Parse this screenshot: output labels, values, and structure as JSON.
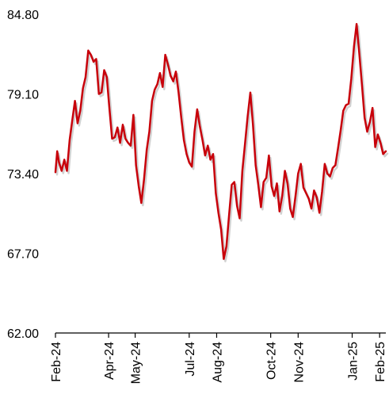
{
  "chart_data": {
    "type": "line",
    "title": "",
    "xlabel": "",
    "ylabel": "",
    "ylim": [
      62.0,
      84.8
    ],
    "y_ticks": [
      "62.00",
      "67.70",
      "73.40",
      "79.10",
      "84.80"
    ],
    "x_tick_labels": [
      "Feb-24",
      "Apr-24",
      "May-24",
      "Jul-24",
      "Aug-24",
      "Oct-24",
      "Nov-24",
      "Jan-25",
      "Feb-25"
    ],
    "x_tick_dates": [
      "2024-02-01",
      "2024-04-01",
      "2024-05-01",
      "2024-07-01",
      "2024-08-01",
      "2024-10-01",
      "2024-11-01",
      "2025-01-01",
      "2025-02-01"
    ],
    "x_range": [
      "2024-02-01",
      "2025-02-08"
    ],
    "grid": false,
    "legend": "none",
    "colors": {
      "line": "#c8000a",
      "shadow": "#9a9a9a",
      "axis": "#000000"
    },
    "series": [
      {
        "x": [
          "2024-02-01",
          "2024-02-03",
          "2024-02-05",
          "2024-02-08",
          "2024-02-11",
          "2024-02-14",
          "2024-02-17",
          "2024-02-20",
          "2024-02-23",
          "2024-02-26",
          "2024-02-29",
          "2024-03-03",
          "2024-03-06",
          "2024-03-09",
          "2024-03-12",
          "2024-03-15",
          "2024-03-18",
          "2024-03-21",
          "2024-03-24",
          "2024-03-27",
          "2024-03-30",
          "2024-04-02",
          "2024-04-05",
          "2024-04-08",
          "2024-04-11",
          "2024-04-14",
          "2024-04-17",
          "2024-04-20",
          "2024-04-23",
          "2024-04-26",
          "2024-04-29",
          "2024-05-02",
          "2024-05-05",
          "2024-05-08",
          "2024-05-11",
          "2024-05-14",
          "2024-05-17",
          "2024-05-20",
          "2024-05-23",
          "2024-05-26",
          "2024-05-29",
          "2024-06-01",
          "2024-06-04",
          "2024-06-07",
          "2024-06-10",
          "2024-06-13",
          "2024-06-16",
          "2024-06-19",
          "2024-06-22",
          "2024-06-25",
          "2024-06-28",
          "2024-07-01",
          "2024-07-04",
          "2024-07-07",
          "2024-07-10",
          "2024-07-13",
          "2024-07-16",
          "2024-07-19",
          "2024-07-22",
          "2024-07-25",
          "2024-07-28",
          "2024-07-31",
          "2024-08-03",
          "2024-08-06",
          "2024-08-09",
          "2024-08-12",
          "2024-08-15",
          "2024-08-18",
          "2024-08-21",
          "2024-08-24",
          "2024-08-27",
          "2024-08-30",
          "2024-09-02",
          "2024-09-05",
          "2024-09-08",
          "2024-09-11",
          "2024-09-14",
          "2024-09-17",
          "2024-09-20",
          "2024-09-23",
          "2024-09-26",
          "2024-09-29",
          "2024-10-02",
          "2024-10-05",
          "2024-10-08",
          "2024-10-11",
          "2024-10-14",
          "2024-10-17",
          "2024-10-20",
          "2024-10-23",
          "2024-10-26",
          "2024-10-29",
          "2024-11-01",
          "2024-11-04",
          "2024-11-07",
          "2024-11-10",
          "2024-11-13",
          "2024-11-16",
          "2024-11-19",
          "2024-11-22",
          "2024-11-25",
          "2024-11-28",
          "2024-12-01",
          "2024-12-04",
          "2024-12-07",
          "2024-12-10",
          "2024-12-13",
          "2024-12-16",
          "2024-12-19",
          "2024-12-22",
          "2024-12-25",
          "2024-12-28",
          "2024-12-31",
          "2025-01-03",
          "2025-01-06",
          "2025-01-09",
          "2025-01-12",
          "2025-01-15",
          "2025-01-18",
          "2025-01-21",
          "2025-01-24",
          "2025-01-27",
          "2025-01-30",
          "2025-02-02",
          "2025-02-05",
          "2025-02-08"
        ],
        "values": [
          73.5,
          75.0,
          74.2,
          73.6,
          74.4,
          73.6,
          75.8,
          77.2,
          78.6,
          77.0,
          77.9,
          79.5,
          80.3,
          82.2,
          81.9,
          81.4,
          81.6,
          79.1,
          79.2,
          80.8,
          80.3,
          78.0,
          75.9,
          76.0,
          76.7,
          75.6,
          76.9,
          75.9,
          75.6,
          75.4,
          77.6,
          74.0,
          72.5,
          71.3,
          73.0,
          75.1,
          76.4,
          78.6,
          79.4,
          79.8,
          80.6,
          79.6,
          81.9,
          81.2,
          80.4,
          80.0,
          80.7,
          79.2,
          77.4,
          75.8,
          74.8,
          74.2,
          73.9,
          76.4,
          78.0,
          76.8,
          75.8,
          74.7,
          75.4,
          74.4,
          74.8,
          72.0,
          70.6,
          69.4,
          67.3,
          68.2,
          70.4,
          72.6,
          72.8,
          71.1,
          70.2,
          73.6,
          75.5,
          77.5,
          79.2,
          76.9,
          74.0,
          72.6,
          71.0,
          72.8,
          73.1,
          74.7,
          72.5,
          71.8,
          72.7,
          70.7,
          71.8,
          73.6,
          72.7,
          70.9,
          70.3,
          71.8,
          73.4,
          74.1,
          72.4,
          72.0,
          71.6,
          70.9,
          72.2,
          71.7,
          70.6,
          72.1,
          74.1,
          73.4,
          73.2,
          73.8,
          74.0,
          75.2,
          76.5,
          77.9,
          78.3,
          78.4,
          80.2,
          82.5,
          84.1,
          82.0,
          79.8,
          77.4,
          76.4,
          77.1,
          78.1,
          75.3,
          76.2,
          75.6,
          74.8,
          75.0
        ]
      }
    ]
  }
}
